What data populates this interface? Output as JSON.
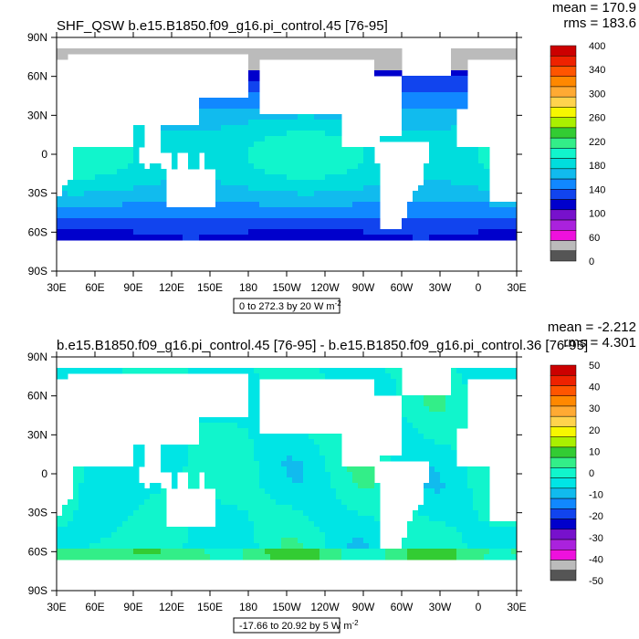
{
  "chart_data": [
    {
      "type": "heatmap",
      "title": "SHF_QSW b.e15.B1850.f09_g16.pi_control.45 [76-95]",
      "stats": {
        "mean": "mean = 170.9",
        "rms": "rms = 183.6"
      },
      "xticks": [
        "30E",
        "60E",
        "90E",
        "120E",
        "150E",
        "180",
        "150W",
        "120W",
        "90W",
        "60W",
        "30W",
        "0",
        "30E"
      ],
      "yticks": [
        "90N",
        "60N",
        "30N",
        "0",
        "30S",
        "60S",
        "90S"
      ],
      "range_label": "0 to 272.3 by 20  W m",
      "range_exponent": "-2",
      "colorbar": {
        "labels": [
          "400",
          "340",
          "300",
          "260",
          "220",
          "180",
          "140",
          "100",
          "60",
          "0"
        ],
        "colors": [
          "#cc0000",
          "#ee2200",
          "#ff5500",
          "#ff8800",
          "#ffaa33",
          "#ffd34d",
          "#f7f700",
          "#aaf000",
          "#33cc33",
          "#33ee88",
          "#11f5cc",
          "#00dddd",
          "#11bbee",
          "#1188ff",
          "#1144ee",
          "#0000cc",
          "#7711cc",
          "#aa22dd",
          "#ee11dd",
          "#bbbbbb",
          "#555555"
        ]
      },
      "field": {
        "base": 90,
        "amplitude": 110,
        "land_pattern": "earth"
      }
    },
    {
      "type": "heatmap",
      "title": "b.e15.B1850.f09_g16.pi_control.45 [76-95] - b.e15.B1850.f09_g16.pi_control.36 [76-95]",
      "stats": {
        "mean": "mean = -2.212",
        "rms": "rms = 4.301"
      },
      "xticks": [
        "30E",
        "60E",
        "90E",
        "120E",
        "150E",
        "180",
        "150W",
        "120W",
        "90W",
        "60W",
        "30W",
        "0",
        "30E"
      ],
      "yticks": [
        "90N",
        "60N",
        "30N",
        "0",
        "30S",
        "60S",
        "90S"
      ],
      "range_label": "-17.66 to 20.92 by 5  W m",
      "range_exponent": "-2",
      "colorbar": {
        "labels": [
          "50",
          "40",
          "30",
          "20",
          "10",
          "0",
          "-10",
          "-20",
          "-30",
          "-40",
          "-50"
        ],
        "colors": [
          "#cc0000",
          "#ee2200",
          "#ff5500",
          "#ff8800",
          "#ffaa33",
          "#ffd34d",
          "#f7f700",
          "#aaf000",
          "#33cc33",
          "#33ee88",
          "#11f5cc",
          "#00e5e5",
          "#11bbee",
          "#1188ff",
          "#1144ee",
          "#0000cc",
          "#7711cc",
          "#aa22dd",
          "#ee11dd",
          "#bbbbbb",
          "#555555"
        ]
      },
      "field": {
        "base": 0,
        "amplitude": 6,
        "land_pattern": "earth"
      }
    }
  ]
}
